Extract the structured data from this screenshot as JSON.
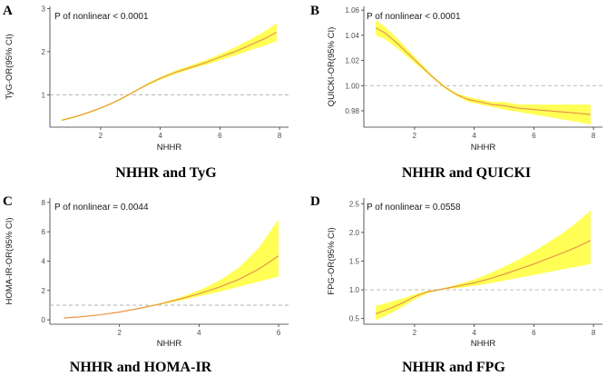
{
  "chart_data": [
    {
      "type": "line",
      "panel_label": "A",
      "caption": "NHHR and TyG",
      "annotation": "P of nonlinear < 0.0001",
      "xlabel": "NHHR",
      "ylabel": "TyG-OR(95% CI)",
      "xlim": [
        0.3,
        8.3
      ],
      "ylim": [
        0.25,
        3.05
      ],
      "xticks": [
        2,
        4,
        6,
        8
      ],
      "yticks": [
        1,
        2,
        3
      ],
      "reference_line": 1,
      "series": [
        {
          "name": "OR",
          "x": [
            0.7,
            1.2,
            1.6,
            2.0,
            2.4,
            2.8,
            3.2,
            3.6,
            4.0,
            4.5,
            5.0,
            5.5,
            6.0,
            6.5,
            7.0,
            7.5,
            7.9
          ],
          "y": [
            0.41,
            0.5,
            0.59,
            0.69,
            0.81,
            0.95,
            1.1,
            1.25,
            1.38,
            1.52,
            1.63,
            1.74,
            1.87,
            2.0,
            2.15,
            2.3,
            2.45
          ],
          "lower": [
            0.39,
            0.48,
            0.57,
            0.67,
            0.79,
            0.93,
            1.08,
            1.22,
            1.35,
            1.48,
            1.59,
            1.69,
            1.8,
            1.91,
            2.03,
            2.14,
            2.24
          ],
          "upper": [
            0.43,
            0.52,
            0.61,
            0.71,
            0.83,
            0.97,
            1.12,
            1.28,
            1.41,
            1.56,
            1.68,
            1.8,
            1.94,
            2.1,
            2.28,
            2.47,
            2.66
          ]
        }
      ]
    },
    {
      "type": "line",
      "panel_label": "B",
      "caption": "NHHR and QUICKI",
      "annotation": "P of nonlinear < 0.0001",
      "xlabel": "NHHR",
      "ylabel": "QUICKI-OR(95% CI)",
      "xlim": [
        0.3,
        8.3
      ],
      "ylim": [
        0.967,
        1.063
      ],
      "xticks": [
        2,
        4,
        6,
        8
      ],
      "yticks": [
        0.98,
        1.0,
        1.02,
        1.04,
        1.06
      ],
      "tick_format": "2",
      "reference_line": 1,
      "series": [
        {
          "name": "OR",
          "x": [
            0.7,
            1.0,
            1.4,
            1.8,
            2.2,
            2.6,
            3.0,
            3.4,
            3.8,
            4.2,
            4.6,
            5.0,
            5.5,
            6.0,
            6.5,
            7.0,
            7.5,
            7.9
          ],
          "y": [
            1.046,
            1.042,
            1.034,
            1.025,
            1.016,
            1.007,
            0.999,
            0.993,
            0.989,
            0.987,
            0.985,
            0.984,
            0.982,
            0.981,
            0.98,
            0.979,
            0.978,
            0.977
          ],
          "lower": [
            1.04,
            1.037,
            1.03,
            1.022,
            1.014,
            1.006,
            0.998,
            0.992,
            0.987,
            0.985,
            0.983,
            0.981,
            0.979,
            0.977,
            0.975,
            0.973,
            0.971,
            0.969
          ],
          "upper": [
            1.052,
            1.047,
            1.038,
            1.028,
            1.018,
            1.008,
            1.0,
            0.994,
            0.991,
            0.989,
            0.987,
            0.987,
            0.985,
            0.985,
            0.985,
            0.985,
            0.985,
            0.985
          ]
        }
      ]
    },
    {
      "type": "line",
      "panel_label": "C",
      "caption": "NHHR and HOMA-IR",
      "annotation": "P of nonlinear = 0.0044",
      "xlabel": "NHHR",
      "ylabel": "HOMA-IR-OR(95% CI)",
      "xlim": [
        0.25,
        6.25
      ],
      "ylim": [
        -0.3,
        8.3
      ],
      "xticks": [
        2,
        4,
        6
      ],
      "yticks": [
        0,
        2,
        4,
        6,
        8
      ],
      "reference_line": 1,
      "series": [
        {
          "name": "OR",
          "x": [
            0.6,
            1.0,
            1.5,
            2.0,
            2.5,
            3.0,
            3.5,
            4.0,
            4.5,
            5.0,
            5.5,
            6.0
          ],
          "y": [
            0.13,
            0.2,
            0.34,
            0.53,
            0.78,
            1.07,
            1.4,
            1.78,
            2.22,
            2.75,
            3.45,
            4.35
          ],
          "lower": [
            0.11,
            0.18,
            0.31,
            0.5,
            0.74,
            1.02,
            1.3,
            1.6,
            1.9,
            2.25,
            2.6,
            2.95
          ],
          "upper": [
            0.15,
            0.22,
            0.37,
            0.56,
            0.82,
            1.12,
            1.52,
            2.0,
            2.65,
            3.55,
            4.9,
            6.85
          ]
        }
      ]
    },
    {
      "type": "line",
      "panel_label": "D",
      "caption": "NHHR and FPG",
      "annotation": "P of nonlinear = 0.0558",
      "xlabel": "NHHR",
      "ylabel": "FPG-OR(95% CI)",
      "xlim": [
        0.3,
        8.3
      ],
      "ylim": [
        0.4,
        2.6
      ],
      "xticks": [
        2,
        4,
        6,
        8
      ],
      "yticks": [
        0.5,
        1.0,
        1.5,
        2.0,
        2.5
      ],
      "tick_format": "1",
      "reference_line": 1,
      "series": [
        {
          "name": "OR",
          "x": [
            0.7,
            1.2,
            1.6,
            2.0,
            2.4,
            2.8,
            3.2,
            3.6,
            4.0,
            4.5,
            5.0,
            5.5,
            6.0,
            6.5,
            7.0,
            7.5,
            7.9
          ],
          "y": [
            0.58,
            0.68,
            0.77,
            0.88,
            0.96,
            1.0,
            1.04,
            1.08,
            1.12,
            1.19,
            1.27,
            1.36,
            1.45,
            1.55,
            1.65,
            1.76,
            1.86
          ],
          "lower": [
            0.47,
            0.59,
            0.7,
            0.83,
            0.93,
            0.99,
            1.02,
            1.04,
            1.07,
            1.11,
            1.16,
            1.21,
            1.26,
            1.31,
            1.36,
            1.41,
            1.45
          ],
          "upper": [
            0.72,
            0.79,
            0.85,
            0.92,
            0.98,
            1.01,
            1.06,
            1.12,
            1.18,
            1.28,
            1.4,
            1.53,
            1.67,
            1.83,
            2.0,
            2.2,
            2.38
          ]
        }
      ]
    }
  ]
}
